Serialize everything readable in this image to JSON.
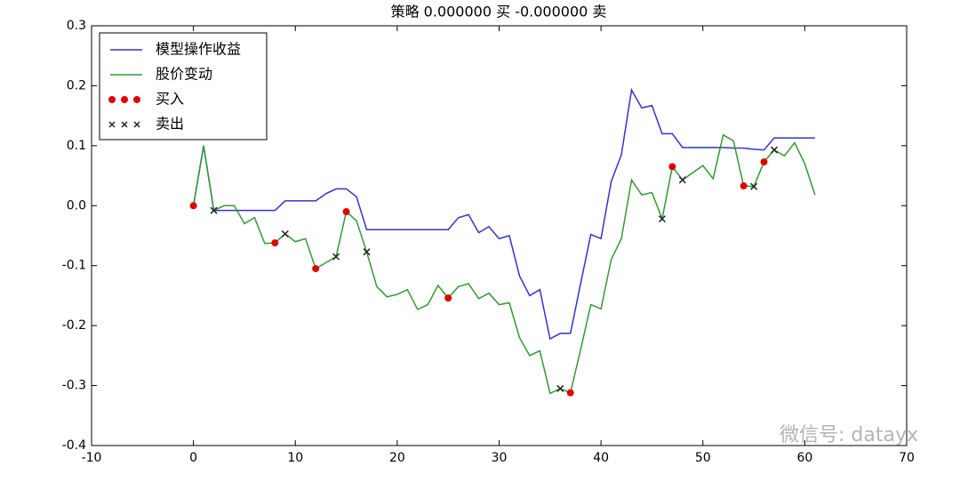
{
  "chart_data": {
    "type": "line",
    "title": "策略 0.000000 买  -0.000000 卖",
    "annotation": "微信号: datayx",
    "xlim": [
      -10,
      70
    ],
    "xticks": [
      -10,
      0,
      10,
      20,
      30,
      40,
      50,
      60,
      70
    ],
    "ylim": [
      -0.4,
      0.3
    ],
    "yticks": [
      -0.4,
      -0.3,
      -0.2,
      -0.1,
      {
        "value": 0,
        "label": "0.0"
      },
      0.1,
      0.2,
      0.3
    ],
    "grid": false,
    "legend": "upper-left",
    "series": [
      {
        "name": "模型操作收益",
        "type": "line",
        "color": "#3333cc",
        "x": [
          0,
          1,
          2,
          3,
          4,
          5,
          6,
          7,
          8,
          9,
          10,
          11,
          12,
          13,
          14,
          15,
          16,
          17,
          18,
          19,
          20,
          21,
          22,
          23,
          24,
          25,
          26,
          27,
          28,
          29,
          30,
          31,
          32,
          33,
          34,
          35,
          36,
          37,
          38,
          39,
          40,
          41,
          42,
          43,
          44,
          45,
          46,
          47,
          48,
          49,
          50,
          51,
          52,
          53,
          54,
          55,
          56,
          57,
          58,
          59,
          60,
          61
        ],
        "values": [
          0,
          0.1,
          -0.008,
          -0.008,
          -0.008,
          -0.008,
          -0.008,
          -0.008,
          -0.008,
          0.008,
          0.008,
          0.008,
          0.008,
          0.02,
          0.028,
          0.028,
          0.015,
          -0.04,
          -0.04,
          -0.04,
          -0.04,
          -0.04,
          -0.04,
          -0.04,
          -0.04,
          -0.04,
          -0.02,
          -0.015,
          -0.045,
          -0.035,
          -0.055,
          -0.05,
          -0.117,
          -0.15,
          -0.14,
          -0.222,
          -0.213,
          -0.213,
          -0.13,
          -0.048,
          -0.055,
          0.04,
          0.085,
          0.193,
          0.163,
          0.167,
          0.12,
          0.12,
          0.097,
          0.097,
          0.097,
          0.097,
          0.097,
          0.096,
          0.096,
          0.094,
          0.093,
          0.113,
          0.113,
          0.113,
          0.113,
          0.113
        ]
      },
      {
        "name": "股价变动",
        "type": "line",
        "color": "#339933",
        "x": [
          0,
          1,
          2,
          3,
          4,
          5,
          6,
          7,
          8,
          9,
          10,
          11,
          12,
          13,
          14,
          15,
          16,
          17,
          18,
          19,
          20,
          21,
          22,
          23,
          24,
          25,
          26,
          27,
          28,
          29,
          30,
          31,
          32,
          33,
          34,
          35,
          36,
          37,
          38,
          39,
          40,
          41,
          42,
          43,
          44,
          45,
          46,
          47,
          48,
          49,
          50,
          51,
          52,
          53,
          54,
          55,
          56,
          57,
          58,
          59,
          60,
          61
        ],
        "values": [
          0,
          0.1,
          -0.008,
          0,
          0,
          -0.03,
          -0.02,
          -0.063,
          -0.062,
          -0.047,
          -0.06,
          -0.055,
          -0.105,
          -0.095,
          -0.085,
          -0.01,
          -0.025,
          -0.077,
          -0.135,
          -0.152,
          -0.148,
          -0.14,
          -0.173,
          -0.165,
          -0.133,
          -0.154,
          -0.135,
          -0.13,
          -0.155,
          -0.146,
          -0.165,
          -0.162,
          -0.22,
          -0.25,
          -0.242,
          -0.313,
          -0.305,
          -0.312,
          -0.24,
          -0.165,
          -0.172,
          -0.09,
          -0.055,
          0.043,
          0.018,
          0.022,
          -0.022,
          0.065,
          0.043,
          0.055,
          0.067,
          0.045,
          0.118,
          0.108,
          0.033,
          0.032,
          0.073,
          0.093,
          0.083,
          0.105,
          0.07,
          0.018
        ]
      },
      {
        "name": "买入",
        "type": "scatter",
        "marker": "o",
        "color": "#dd0000",
        "x": [
          0,
          8,
          12,
          15,
          25,
          37,
          47,
          54,
          56
        ],
        "values": [
          0,
          -0.062,
          -0.105,
          -0.01,
          -0.154,
          -0.312,
          0.065,
          0.033,
          0.073
        ]
      },
      {
        "name": "卖出",
        "type": "scatter",
        "marker": "x",
        "color": "#222222",
        "x": [
          2,
          9,
          14,
          17,
          36,
          46,
          48,
          55,
          57
        ],
        "values": [
          -0.008,
          -0.047,
          -0.085,
          -0.077,
          -0.305,
          -0.022,
          0.043,
          0.032,
          0.093
        ]
      }
    ]
  }
}
